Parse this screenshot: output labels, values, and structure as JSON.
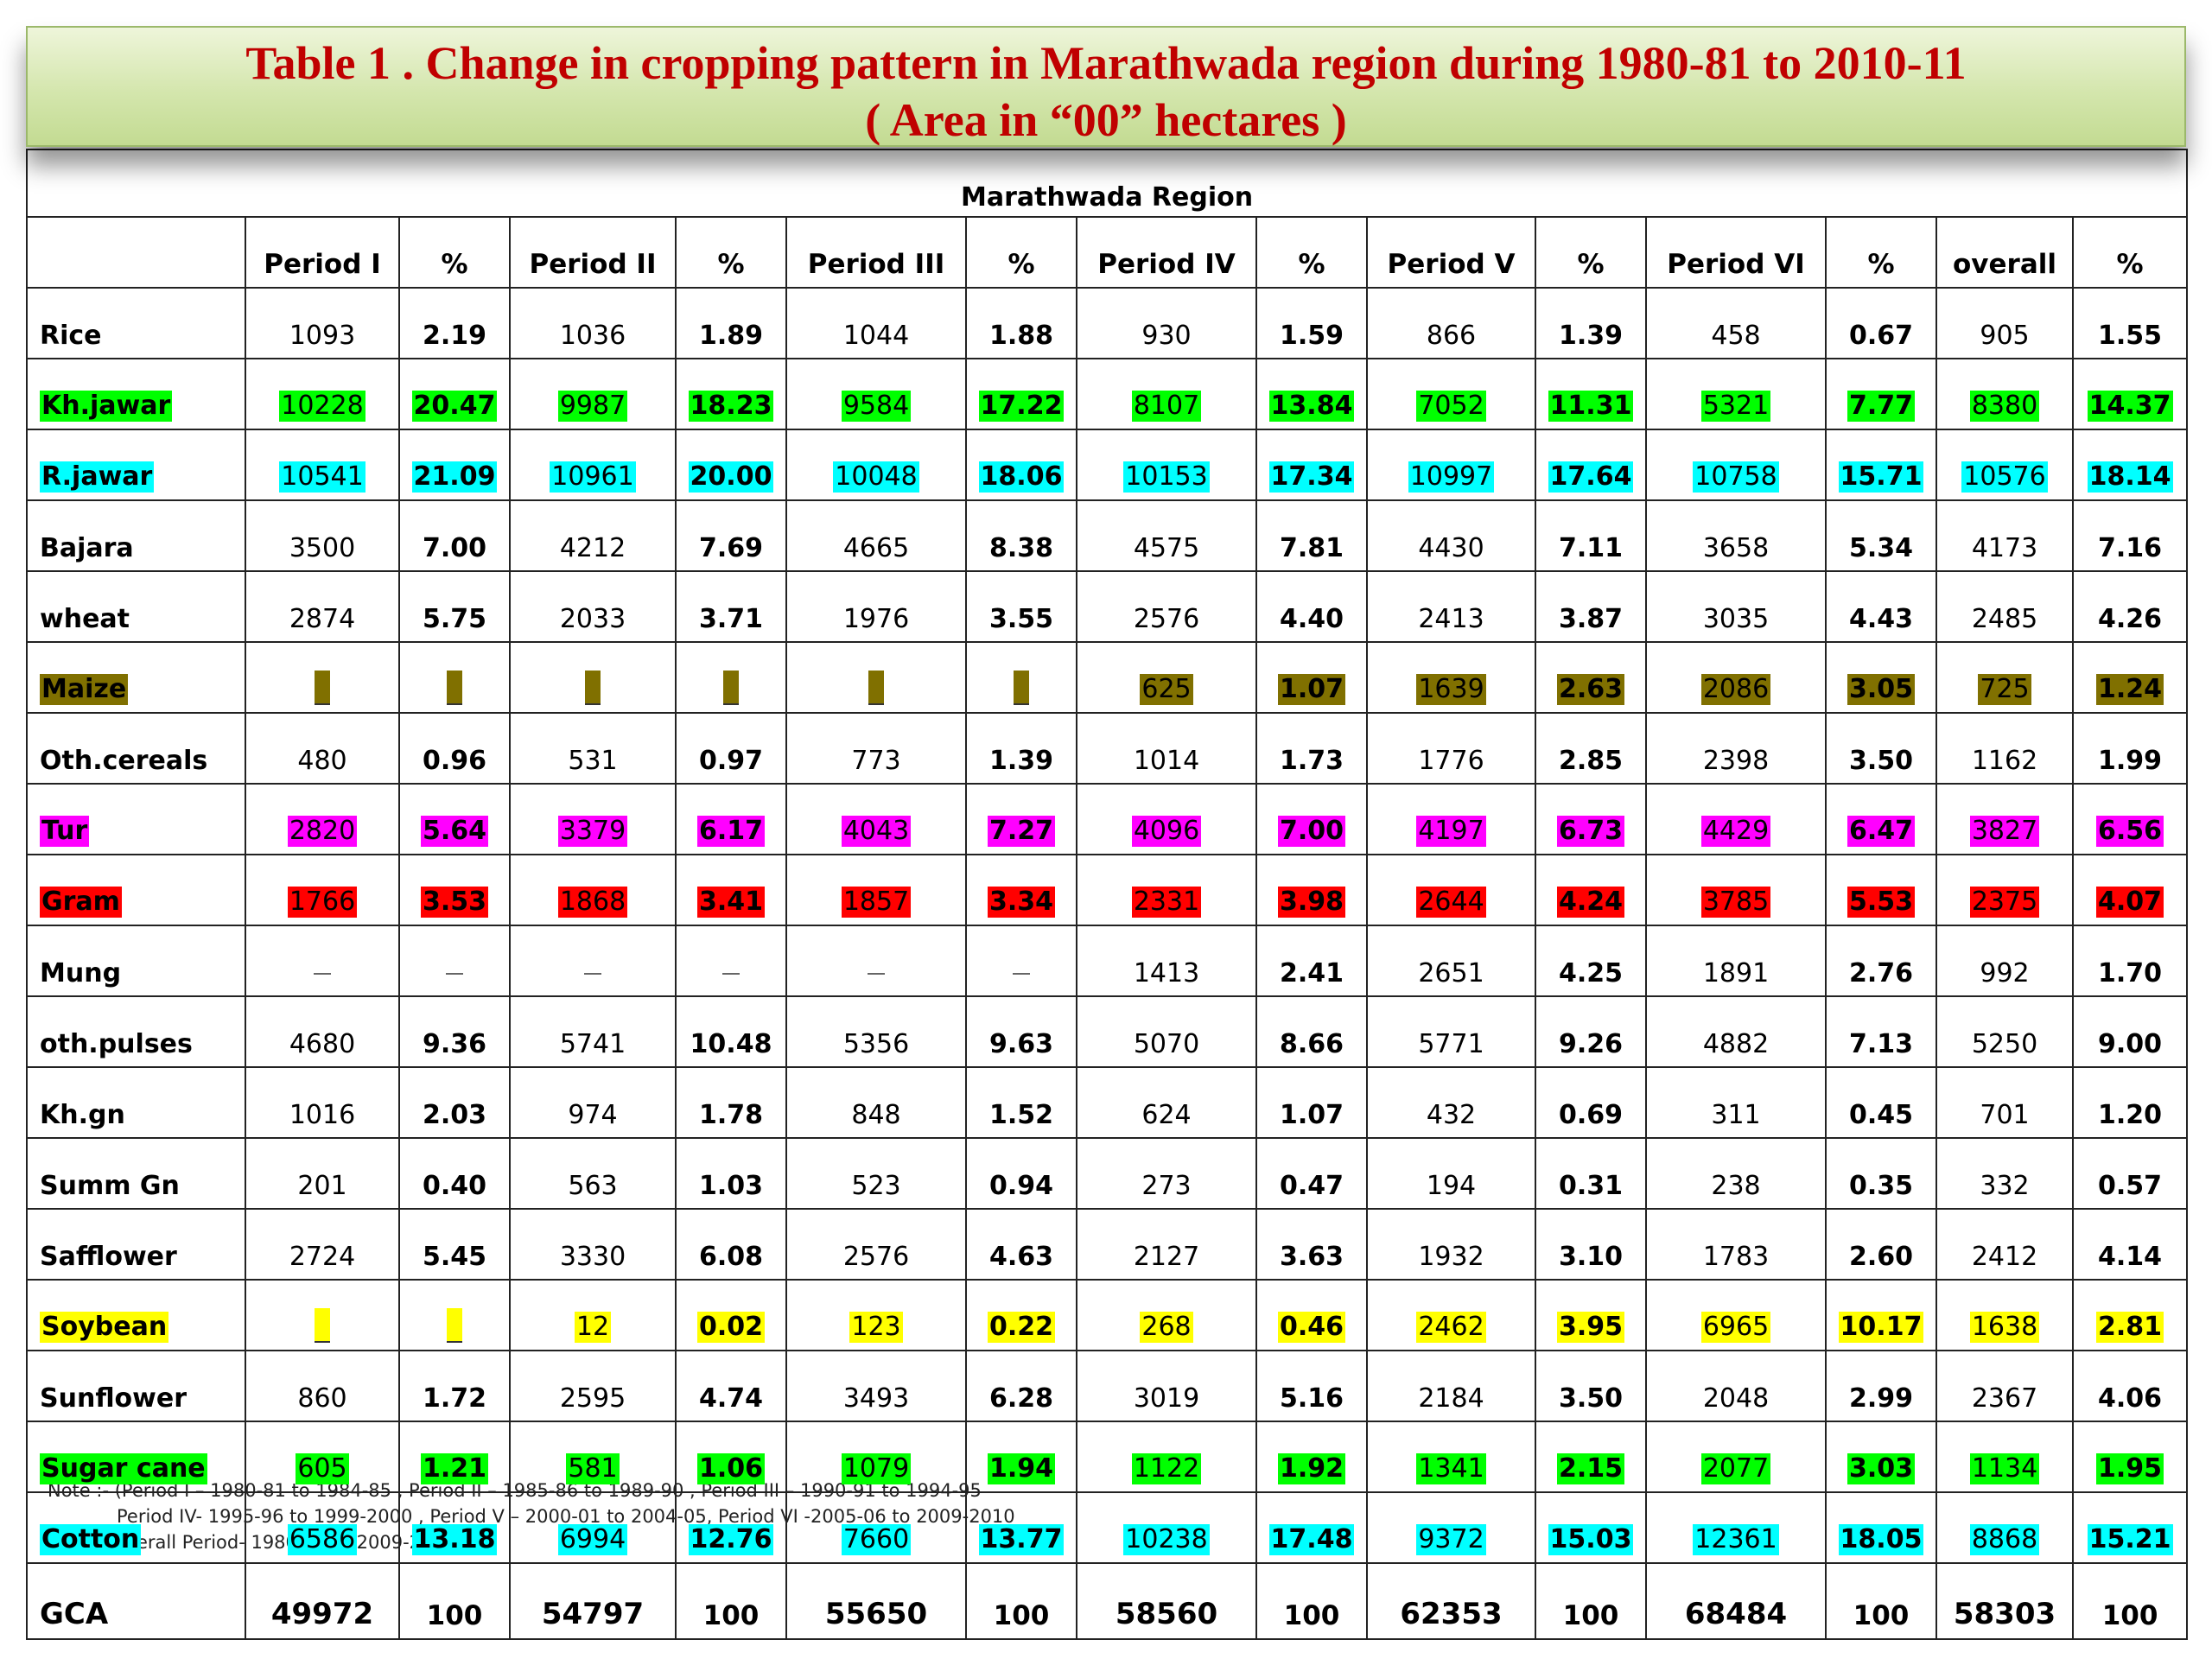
{
  "title": {
    "line1": "Table 1 . Change in cropping pattern in Marathwada region during 1980-81 to 2010-11",
    "line2": "( Area in “00” hectares )"
  },
  "colors": {
    "title_text": "#c00000",
    "green": "#00ff00",
    "cyan": "#00ffff",
    "olive": "#807000",
    "magenta": "#ff00ff",
    "red": "#ff0000",
    "yellow": "#ffff00"
  },
  "table": {
    "region_header": "Marathwada Region",
    "columns": [
      "",
      "Period I",
      "%",
      "Period II",
      "%",
      "Period III",
      "%",
      "Period IV",
      "%",
      "Period V",
      "%",
      "Period VI",
      "%",
      "overall",
      "%"
    ],
    "rows": [
      {
        "crop": "Rice",
        "highlight": "",
        "cells": [
          "1093",
          "2.19",
          "1036",
          "1.89",
          "1044",
          "1.88",
          "930",
          "1.59",
          "866",
          "1.39",
          "458",
          "0.67",
          "905",
          "1.55"
        ]
      },
      {
        "crop": "Kh.jawar",
        "highlight": "green",
        "cells": [
          "10228",
          "20.47",
          "9987",
          "18.23",
          "9584",
          "17.22",
          "8107",
          "13.84",
          "7052",
          "11.31",
          "5321",
          "7.77",
          "8380",
          "14.37"
        ]
      },
      {
        "crop": "R.jawar",
        "highlight": "cyan",
        "cells": [
          "10541",
          "21.09",
          "10961",
          "20.00",
          "10048",
          "18.06",
          "10153",
          "17.34",
          "10997",
          "17.64",
          "10758",
          "15.71",
          "10576",
          "18.14"
        ]
      },
      {
        "crop": "Bajara",
        "highlight": "",
        "cells": [
          "3500",
          "7.00",
          "4212",
          "7.69",
          "4665",
          "8.38",
          "4575",
          "7.81",
          "4430",
          "7.11",
          "3658",
          "5.34",
          "4173",
          "7.16"
        ]
      },
      {
        "crop": "wheat",
        "highlight": "",
        "cells": [
          "2874",
          "5.75",
          "2033",
          "3.71",
          "1976",
          "3.55",
          "2576",
          "4.40",
          "2413",
          "3.87",
          "3035",
          "4.43",
          "2485",
          "4.26"
        ]
      },
      {
        "crop": "Maize",
        "highlight": "olive",
        "cells": [
          "_",
          "_",
          "_",
          "_",
          "_",
          "_",
          "625",
          "1.07",
          "1639",
          "2.63",
          "2086",
          "3.05",
          "725",
          "1.24"
        ]
      },
      {
        "crop": "Oth.cereals",
        "highlight": "",
        "cells": [
          "480",
          "0.96",
          "531",
          "0.97",
          "773",
          "1.39",
          "1014",
          "1.73",
          "1776",
          "2.85",
          "2398",
          "3.50",
          "1162",
          "1.99"
        ]
      },
      {
        "crop": "Tur",
        "highlight": "magenta",
        "cells": [
          "2820",
          "5.64",
          "3379",
          "6.17",
          "4043",
          "7.27",
          "4096",
          "7.00",
          "4197",
          "6.73",
          "4429",
          "6.47",
          "3827",
          "6.56"
        ]
      },
      {
        "crop": "Gram",
        "highlight": "red",
        "cells": [
          "1766",
          "3.53",
          "1868",
          "3.41",
          "1857",
          "3.34",
          "2331",
          "3.98",
          "2644",
          "4.24",
          "3785",
          "5.53",
          "2375",
          "4.07"
        ]
      },
      {
        "crop": "Mung",
        "highlight": "",
        "cells": [
          "_",
          "_",
          "_",
          "_",
          "_",
          "_",
          "1413",
          "2.41",
          "2651",
          "4.25",
          "1891",
          "2.76",
          "992",
          "1.70"
        ]
      },
      {
        "crop": "oth.pulses",
        "highlight": "",
        "cells": [
          "4680",
          "9.36",
          "5741",
          "10.48",
          "5356",
          "9.63",
          "5070",
          "8.66",
          "5771",
          "9.26",
          "4882",
          "7.13",
          "5250",
          "9.00"
        ]
      },
      {
        "crop": "Kh.gn",
        "highlight": "",
        "cells": [
          "1016",
          "2.03",
          "974",
          "1.78",
          "848",
          "1.52",
          "624",
          "1.07",
          "432",
          "0.69",
          "311",
          "0.45",
          "701",
          "1.20"
        ]
      },
      {
        "crop": "Summ Gn",
        "highlight": "",
        "cells": [
          "201",
          "0.40",
          "563",
          "1.03",
          "523",
          "0.94",
          "273",
          "0.47",
          "194",
          "0.31",
          "238",
          "0.35",
          "332",
          "0.57"
        ]
      },
      {
        "crop": "Safflower",
        "highlight": "",
        "cells": [
          "2724",
          "5.45",
          "3330",
          "6.08",
          "2576",
          "4.63",
          "2127",
          "3.63",
          "1932",
          "3.10",
          "1783",
          "2.60",
          "2412",
          "4.14"
        ]
      },
      {
        "crop": "Soybean",
        "highlight": "yellow",
        "cells": [
          "_",
          "_",
          "12",
          "0.02",
          "123",
          "0.22",
          "268",
          "0.46",
          "2462",
          "3.95",
          "6965",
          "10.17",
          "1638",
          "2.81"
        ]
      },
      {
        "crop": "Sunflower",
        "highlight": "",
        "cells": [
          "860",
          "1.72",
          "2595",
          "4.74",
          "3493",
          "6.28",
          "3019",
          "5.16",
          "2184",
          "3.50",
          "2048",
          "2.99",
          "2367",
          "4.06"
        ]
      },
      {
        "crop": "Sugar cane",
        "highlight": "green",
        "cells": [
          "605",
          "1.21",
          "581",
          "1.06",
          "1079",
          "1.94",
          "1122",
          "1.92",
          "1341",
          "2.15",
          "2077",
          "3.03",
          "1134",
          "1.95"
        ]
      },
      {
        "crop": "Cotton",
        "highlight": "cyan",
        "cells": [
          "6586",
          "13.18",
          "6994",
          "12.76",
          "7660",
          "13.77",
          "10238",
          "17.48",
          "9372",
          "15.03",
          "12361",
          "18.05",
          "8868",
          "15.21"
        ]
      }
    ],
    "total_row": {
      "crop": "GCA",
      "cells": [
        "49972",
        "100",
        "54797",
        "100",
        "55650",
        "100",
        "58560",
        "100",
        "62353",
        "100",
        "68484",
        "100",
        "58303",
        "100"
      ]
    }
  },
  "note": {
    "line1": "Note :- (Period I – 1980-81 to 1984-85 , Period II – 1985-86 to 1989-90 , Period III – 1990-91 to 1994-95",
    "line2": "Period IV- 1995-96 to 1999-2000 , Period V – 2000-01 to 2004-05, Period VI -2005-06 to 2009-2010",
    "line3": "Overall Period- 1980-81 to 2009-2010)"
  }
}
